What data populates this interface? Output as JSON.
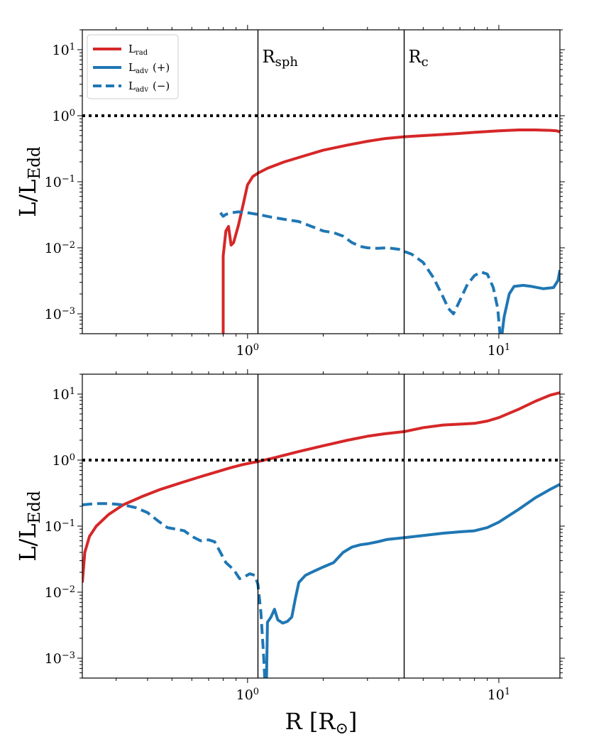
{
  "chart_data": [
    {
      "type": "line",
      "panel": "top",
      "xscale": "log",
      "yscale": "log",
      "xlim": [
        0.22,
        17.5
      ],
      "ylim": [
        0.0005,
        20
      ],
      "ylabel": "L/L",
      "ylabel_sub": "Edd",
      "xlabel": "",
      "xticks": [
        {
          "value": 1,
          "base": "10",
          "exp": "0"
        },
        {
          "value": 10,
          "base": "10",
          "exp": "1"
        }
      ],
      "yticks": [
        {
          "value": 0.001,
          "base": "10",
          "exp": "−3"
        },
        {
          "value": 0.01,
          "base": "10",
          "exp": "−2"
        },
        {
          "value": 0.1,
          "base": "10",
          "exp": "−1"
        },
        {
          "value": 1,
          "base": "10",
          "exp": "0"
        },
        {
          "value": 10,
          "base": "10",
          "exp": "1"
        }
      ],
      "reference_line": {
        "y": 1,
        "style": "dotted",
        "color": "#000000"
      },
      "vlines": [
        {
          "x": 1.1,
          "label": "R",
          "label_sub": "sph"
        },
        {
          "x": 4.2,
          "label": "R",
          "label_sub": "c"
        }
      ],
      "legend": {
        "placement": "top-left",
        "entries": [
          {
            "label": "L",
            "sub": "rad",
            "suffix": "",
            "color": "#d62728",
            "dash": "solid"
          },
          {
            "label": "L",
            "sub": "adv",
            "suffix": "(+)",
            "color": "#1f77b4",
            "dash": "solid"
          },
          {
            "label": "L",
            "sub": "adv",
            "suffix": "(−)",
            "color": "#1f77b4",
            "dash": "dashed"
          }
        ]
      },
      "series": [
        {
          "name": "L_rad",
          "color": "#d62728",
          "dash": "solid",
          "points": [
            [
              0.8,
              0.0005
            ],
            [
              0.8,
              0.0075
            ],
            [
              0.82,
              0.018
            ],
            [
              0.84,
              0.021
            ],
            [
              0.86,
              0.011
            ],
            [
              0.88,
              0.012
            ],
            [
              0.92,
              0.022
            ],
            [
              0.96,
              0.045
            ],
            [
              1.0,
              0.09
            ],
            [
              1.05,
              0.12
            ],
            [
              1.1,
              0.135
            ],
            [
              1.2,
              0.16
            ],
            [
              1.4,
              0.2
            ],
            [
              1.7,
              0.25
            ],
            [
              2.0,
              0.3
            ],
            [
              2.5,
              0.36
            ],
            [
              3.0,
              0.41
            ],
            [
              3.5,
              0.45
            ],
            [
              4.2,
              0.48
            ],
            [
              5.0,
              0.5
            ],
            [
              6.0,
              0.52
            ],
            [
              7.0,
              0.54
            ],
            [
              8.0,
              0.56
            ],
            [
              10.0,
              0.59
            ],
            [
              12.0,
              0.61
            ],
            [
              14.0,
              0.61
            ],
            [
              16.0,
              0.6
            ],
            [
              17.0,
              0.59
            ],
            [
              17.5,
              0.57
            ]
          ]
        },
        {
          "name": "L_adv (-)",
          "color": "#1f77b4",
          "dash": "dashed",
          "points": [
            [
              0.78,
              0.034
            ],
            [
              0.8,
              0.03
            ],
            [
              0.82,
              0.032
            ],
            [
              0.86,
              0.034
            ],
            [
              0.92,
              0.035
            ],
            [
              1.0,
              0.034
            ],
            [
              1.1,
              0.032
            ],
            [
              1.25,
              0.029
            ],
            [
              1.4,
              0.027
            ],
            [
              1.6,
              0.025
            ],
            [
              1.8,
              0.021
            ],
            [
              2.0,
              0.018
            ],
            [
              2.2,
              0.017
            ],
            [
              2.4,
              0.015
            ],
            [
              2.6,
              0.012
            ],
            [
              2.8,
              0.0105
            ],
            [
              3.0,
              0.01
            ],
            [
              3.3,
              0.0098
            ],
            [
              3.6,
              0.01
            ],
            [
              4.0,
              0.0095
            ],
            [
              4.5,
              0.008
            ],
            [
              5.0,
              0.006
            ],
            [
              5.5,
              0.0035
            ],
            [
              6.0,
              0.0018
            ],
            [
              6.3,
              0.0012
            ],
            [
              6.6,
              0.001
            ],
            [
              7.0,
              0.0016
            ],
            [
              7.5,
              0.0028
            ],
            [
              8.0,
              0.0038
            ],
            [
              8.5,
              0.0043
            ],
            [
              9.0,
              0.004
            ],
            [
              9.5,
              0.0025
            ],
            [
              9.9,
              0.0012
            ],
            [
              10.1,
              0.0005
            ]
          ]
        },
        {
          "name": "L_adv (+)",
          "color": "#1f77b4",
          "dash": "solid",
          "points": [
            [
              10.3,
              0.0005
            ],
            [
              10.5,
              0.0009
            ],
            [
              11.0,
              0.002
            ],
            [
              11.5,
              0.0026
            ],
            [
              12.5,
              0.0027
            ],
            [
              13.5,
              0.0026
            ],
            [
              15.0,
              0.0024
            ],
            [
              16.5,
              0.0025
            ],
            [
              17.2,
              0.0032
            ],
            [
              17.5,
              0.0046
            ]
          ]
        }
      ]
    },
    {
      "type": "line",
      "panel": "bottom",
      "xscale": "log",
      "yscale": "log",
      "xlim": [
        0.22,
        17.5
      ],
      "ylim": [
        0.0005,
        20
      ],
      "ylabel": "L/L",
      "ylabel_sub": "Edd",
      "xlabel": "R [R",
      "xlabel_symbol": "⊙",
      "xlabel_close": "]",
      "xticks": [
        {
          "value": 1,
          "base": "10",
          "exp": "0"
        },
        {
          "value": 10,
          "base": "10",
          "exp": "1"
        }
      ],
      "yticks": [
        {
          "value": 0.001,
          "base": "10",
          "exp": "−3"
        },
        {
          "value": 0.01,
          "base": "10",
          "exp": "−2"
        },
        {
          "value": 0.1,
          "base": "10",
          "exp": "−1"
        },
        {
          "value": 1,
          "base": "10",
          "exp": "0"
        },
        {
          "value": 10,
          "base": "10",
          "exp": "1"
        }
      ],
      "reference_line": {
        "y": 1,
        "style": "dotted",
        "color": "#000000"
      },
      "vlines": [
        {
          "x": 1.1
        },
        {
          "x": 4.2
        }
      ],
      "series": [
        {
          "name": "L_rad",
          "color": "#d62728",
          "dash": "solid",
          "points": [
            [
              0.22,
              0.014
            ],
            [
              0.225,
              0.04
            ],
            [
              0.235,
              0.07
            ],
            [
              0.25,
              0.1
            ],
            [
              0.28,
              0.15
            ],
            [
              0.32,
              0.21
            ],
            [
              0.38,
              0.28
            ],
            [
              0.45,
              0.36
            ],
            [
              0.55,
              0.46
            ],
            [
              0.65,
              0.56
            ],
            [
              0.75,
              0.66
            ],
            [
              0.85,
              0.76
            ],
            [
              0.95,
              0.85
            ],
            [
              1.05,
              0.92
            ],
            [
              1.1,
              0.95
            ],
            [
              1.3,
              1.1
            ],
            [
              1.6,
              1.35
            ],
            [
              2.0,
              1.65
            ],
            [
              2.5,
              2.0
            ],
            [
              3.0,
              2.3
            ],
            [
              3.5,
              2.5
            ],
            [
              4.2,
              2.7
            ],
            [
              5.0,
              3.1
            ],
            [
              6.0,
              3.4
            ],
            [
              7.0,
              3.5
            ],
            [
              8.0,
              3.6
            ],
            [
              9.0,
              3.9
            ],
            [
              10.0,
              4.4
            ],
            [
              12.0,
              5.9
            ],
            [
              14.0,
              7.8
            ],
            [
              16.0,
              9.6
            ],
            [
              17.5,
              10.5
            ]
          ]
        },
        {
          "name": "L_adv (-)",
          "color": "#1f77b4",
          "dash": "dashed",
          "points": [
            [
              0.22,
              0.21
            ],
            [
              0.25,
              0.22
            ],
            [
              0.28,
              0.22
            ],
            [
              0.32,
              0.21
            ],
            [
              0.36,
              0.19
            ],
            [
              0.4,
              0.16
            ],
            [
              0.44,
              0.12
            ],
            [
              0.48,
              0.095
            ],
            [
              0.52,
              0.09
            ],
            [
              0.56,
              0.085
            ],
            [
              0.6,
              0.07
            ],
            [
              0.65,
              0.06
            ],
            [
              0.7,
              0.062
            ],
            [
              0.74,
              0.058
            ],
            [
              0.78,
              0.04
            ],
            [
              0.82,
              0.028
            ],
            [
              0.88,
              0.022
            ],
            [
              0.93,
              0.016
            ],
            [
              0.97,
              0.017
            ],
            [
              1.02,
              0.019
            ],
            [
              1.07,
              0.018
            ],
            [
              1.1,
              0.013
            ],
            [
              1.13,
              0.005
            ],
            [
              1.16,
              0.001
            ],
            [
              1.17,
              0.0005
            ]
          ]
        },
        {
          "name": "L_adv (+)",
          "color": "#1f77b4",
          "dash": "solid",
          "points": [
            [
              1.19,
              0.0005
            ],
            [
              1.2,
              0.0035
            ],
            [
              1.24,
              0.0042
            ],
            [
              1.28,
              0.0055
            ],
            [
              1.32,
              0.0038
            ],
            [
              1.38,
              0.0034
            ],
            [
              1.44,
              0.0036
            ],
            [
              1.5,
              0.0042
            ],
            [
              1.55,
              0.008
            ],
            [
              1.6,
              0.014
            ],
            [
              1.7,
              0.018
            ],
            [
              1.8,
              0.02
            ],
            [
              2.0,
              0.024
            ],
            [
              2.2,
              0.028
            ],
            [
              2.4,
              0.04
            ],
            [
              2.6,
              0.048
            ],
            [
              2.8,
              0.052
            ],
            [
              3.0,
              0.054
            ],
            [
              3.3,
              0.058
            ],
            [
              3.6,
              0.063
            ],
            [
              4.2,
              0.067
            ],
            [
              5.0,
              0.072
            ],
            [
              6.0,
              0.078
            ],
            [
              7.0,
              0.082
            ],
            [
              8.0,
              0.085
            ],
            [
              9.0,
              0.095
            ],
            [
              10.0,
              0.115
            ],
            [
              12.0,
              0.18
            ],
            [
              14.0,
              0.27
            ],
            [
              16.0,
              0.36
            ],
            [
              17.5,
              0.43
            ]
          ]
        }
      ]
    }
  ]
}
